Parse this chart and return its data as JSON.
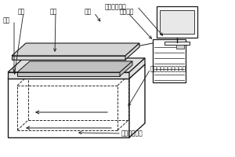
{
  "bg_color": "#ffffff",
  "line_color": "#1a1a1a",
  "labels": {
    "electrochemical_workstation": "电化学工作站",
    "tank_body": "槽体",
    "cathode": "阴极",
    "anode": "阳极",
    "wire": "导线",
    "test_port": "测试端口",
    "electrolyte": "电化学液相合成电解池",
    "ultrasonic": "超声波发生器"
  },
  "font_size": 5.5
}
